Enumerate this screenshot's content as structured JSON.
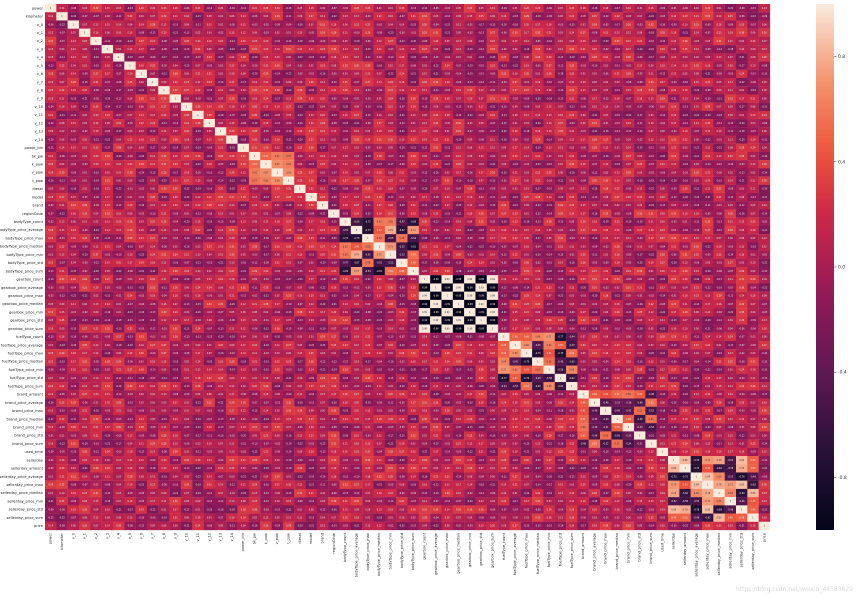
{
  "chart_data": {
    "type": "heatmap",
    "title": "",
    "xlabel": "",
    "ylabel": "",
    "labels": [
      "power",
      "kilometer",
      "v_0",
      "v_1",
      "v_2",
      "v_3",
      "v_4",
      "v_5",
      "v_6",
      "v_7",
      "v_8",
      "v_9",
      "v_10",
      "v_11",
      "v_12",
      "v_13",
      "v_14",
      "power_bin",
      "bk_pw",
      "k_pow",
      "v_pow",
      "t_pow",
      "diesel",
      "model",
      "brand",
      "regionCode",
      "bodyType_count",
      "bodyType_price_average",
      "bodyType_price_max",
      "bodyType_price_median",
      "bodyType_price_min",
      "bodyType_price_std",
      "bodyType_price_sum",
      "gearbox_count",
      "gearbox_price_average",
      "gearbox_price_max",
      "gearbox_price_median",
      "gearbox_price_min",
      "gearbox_price_std",
      "gearbox_price_sum",
      "fuelType_count",
      "fuelType_price_average",
      "fuelType_price_max",
      "fuelType_price_median",
      "fuelType_price_min",
      "fuelType_price_std",
      "fuelType_price_sum",
      "brand_amount",
      "brand_price_average",
      "brand_price_max",
      "brand_price_median",
      "brand_price_min",
      "brand_price_std",
      "brand_price_sum",
      "used_time",
      "sellerday",
      "sellerday_amount",
      "sellerday_price_average",
      "sellerday_price_max",
      "sellerday_price_median",
      "sellerday_price_min",
      "sellerday_price_std",
      "sellerday_price_sum",
      "price"
    ],
    "blocks": [
      {
        "range": [
          33,
          39
        ],
        "pattern": "alternating",
        "strength": 0.99
      },
      {
        "range": [
          26,
          32
        ],
        "pattern": "mixed",
        "strength": 0.85
      },
      {
        "range": [
          40,
          46
        ],
        "pattern": "mixed",
        "strength": 0.8
      },
      {
        "range": [
          47,
          53
        ],
        "pattern": "mixed",
        "strength": 0.6
      },
      {
        "range": [
          55,
          62
        ],
        "pattern": "mixed",
        "strength": 0.85
      },
      {
        "range": [
          18,
          21
        ],
        "pattern": "positive",
        "strength": 0.7
      }
    ],
    "colorbar": {
      "colormap": "rocket",
      "min": -1.0,
      "max": 1.0,
      "ticks": [
        0.8,
        0.4,
        0.0,
        -0.4,
        -0.8
      ]
    },
    "annotated": true,
    "grid": false,
    "legend": "right"
  },
  "watermark": "https://blog.csdn.net/weixin_44583829"
}
